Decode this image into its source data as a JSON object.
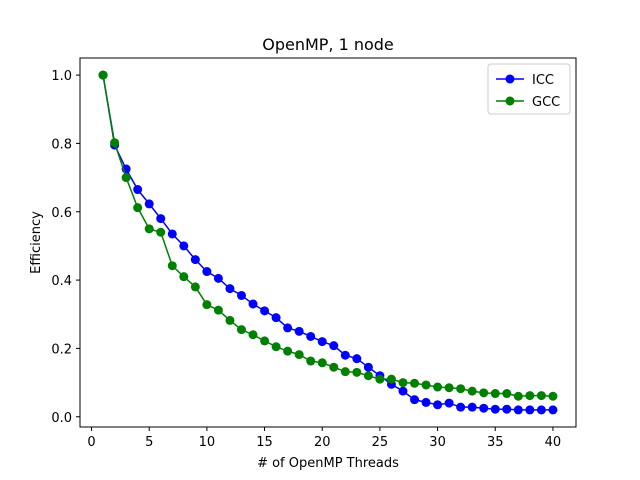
{
  "chart_data": {
    "type": "line",
    "title": "OpenMP, 1 node",
    "xlabel": "# of OpenMP Threads",
    "ylabel": "Efficiency",
    "xlim": [
      -1,
      42
    ],
    "ylim": [
      -0.03,
      1.05
    ],
    "xticks": [
      0,
      5,
      10,
      15,
      20,
      25,
      30,
      35,
      40
    ],
    "yticks": [
      0.0,
      0.2,
      0.4,
      0.6,
      0.8,
      1.0
    ],
    "xtick_labels": [
      "0",
      "5",
      "10",
      "15",
      "20",
      "25",
      "30",
      "35",
      "40"
    ],
    "ytick_labels": [
      "0.0",
      "0.2",
      "0.4",
      "0.6",
      "0.8",
      "1.0"
    ],
    "legend_position": "top-right",
    "grid": false,
    "x": [
      1,
      2,
      3,
      4,
      5,
      6,
      7,
      8,
      9,
      10,
      11,
      12,
      13,
      14,
      15,
      16,
      17,
      18,
      19,
      20,
      21,
      22,
      23,
      24,
      25,
      26,
      27,
      28,
      29,
      30,
      31,
      32,
      33,
      34,
      35,
      36,
      37,
      38,
      39,
      40
    ],
    "series": [
      {
        "name": "ICC",
        "color": "#0000ff",
        "values": [
          1.0,
          0.795,
          0.725,
          0.665,
          0.623,
          0.58,
          0.535,
          0.5,
          0.46,
          0.425,
          0.405,
          0.375,
          0.355,
          0.33,
          0.31,
          0.29,
          0.26,
          0.25,
          0.235,
          0.22,
          0.208,
          0.18,
          0.17,
          0.145,
          0.12,
          0.095,
          0.075,
          0.05,
          0.042,
          0.035,
          0.04,
          0.028,
          0.028,
          0.025,
          0.022,
          0.022,
          0.02,
          0.02,
          0.02,
          0.02
        ]
      },
      {
        "name": "GCC",
        "color": "#008000",
        "values": [
          1.0,
          0.802,
          0.7,
          0.612,
          0.55,
          0.54,
          0.442,
          0.41,
          0.38,
          0.328,
          0.312,
          0.282,
          0.255,
          0.24,
          0.222,
          0.205,
          0.192,
          0.182,
          0.163,
          0.158,
          0.145,
          0.132,
          0.13,
          0.12,
          0.11,
          0.11,
          0.1,
          0.098,
          0.093,
          0.087,
          0.085,
          0.082,
          0.075,
          0.07,
          0.068,
          0.068,
          0.06,
          0.062,
          0.062,
          0.06
        ]
      }
    ]
  }
}
